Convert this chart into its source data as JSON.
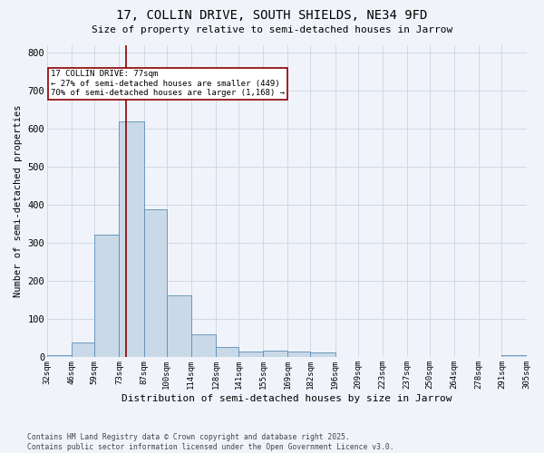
{
  "title1": "17, COLLIN DRIVE, SOUTH SHIELDS, NE34 9FD",
  "title2": "Size of property relative to semi-detached houses in Jarrow",
  "xlabel": "Distribution of semi-detached houses by size in Jarrow",
  "ylabel": "Number of semi-detached properties",
  "bins": [
    32,
    46,
    59,
    73,
    87,
    100,
    114,
    128,
    141,
    155,
    169,
    182,
    196,
    209,
    223,
    237,
    250,
    264,
    278,
    291,
    305
  ],
  "counts": [
    5,
    40,
    322,
    621,
    390,
    163,
    60,
    28,
    15,
    17,
    15,
    12,
    0,
    0,
    0,
    0,
    0,
    0,
    0,
    5
  ],
  "bar_color": "#c9d9e8",
  "bar_edge_color": "#5a8db5",
  "property_sqm": 77,
  "vline_color": "#8b0000",
  "annotation_text": "17 COLLIN DRIVE: 77sqm\n← 27% of semi-detached houses are smaller (449)\n70% of semi-detached houses are larger (1,168) →",
  "annotation_box_color": "#ffffff",
  "annotation_border_color": "#8b0000",
  "ylim": [
    0,
    820
  ],
  "yticks": [
    0,
    100,
    200,
    300,
    400,
    500,
    600,
    700,
    800
  ],
  "grid_color": "#d0d8e8",
  "background_color": "#f0f4fa",
  "footer_text": "Contains HM Land Registry data © Crown copyright and database right 2025.\nContains public sector information licensed under the Open Government Licence v3.0.",
  "tick_labels": [
    "32sqm",
    "46sqm",
    "59sqm",
    "73sqm",
    "87sqm",
    "100sqm",
    "114sqm",
    "128sqm",
    "141sqm",
    "155sqm",
    "169sqm",
    "182sqm",
    "196sqm",
    "209sqm",
    "223sqm",
    "237sqm",
    "250sqm",
    "264sqm",
    "278sqm",
    "291sqm",
    "305sqm"
  ]
}
